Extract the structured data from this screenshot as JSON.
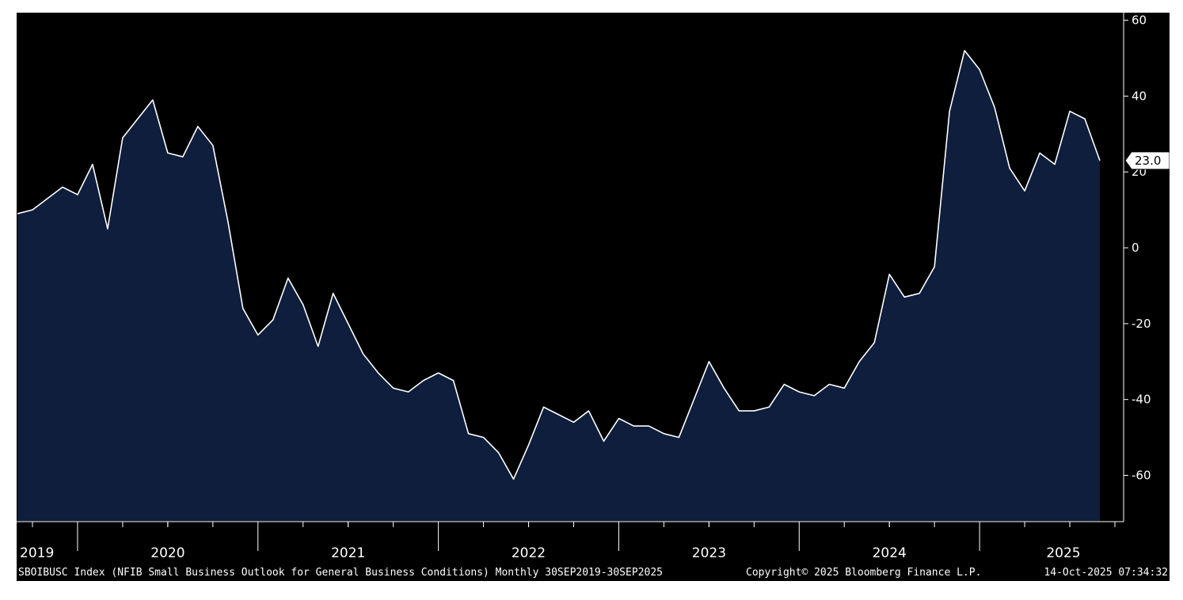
{
  "chart_data": {
    "type": "area",
    "title": "",
    "xlabel": "",
    "ylabel": "",
    "x_start": "2019-09",
    "x_end": "2025-09",
    "frequency": "monthly",
    "ylim": [
      -72,
      62
    ],
    "y_ticks": [
      60,
      40,
      20,
      0,
      -20,
      -40,
      -60
    ],
    "year_labels": [
      "2019",
      "2020",
      "2021",
      "2022",
      "2023",
      "2024",
      "2025"
    ],
    "last_value_label": "23.0",
    "grid": false,
    "colors": {
      "background": "#000000",
      "fill": "#0e1e3c",
      "line": "#ffffff"
    },
    "series": [
      {
        "values": [
          9,
          10,
          13,
          16,
          14,
          22,
          5,
          29,
          34,
          39,
          25,
          24,
          32,
          27,
          7,
          -16,
          -23,
          -19,
          -8,
          -15,
          -26,
          -12,
          -20,
          -28,
          -33,
          -37,
          -38,
          -35,
          -33,
          -35,
          -49,
          -50,
          -54,
          -61,
          -52,
          -42,
          -44,
          -46,
          -43,
          -51,
          -45,
          -47,
          -47,
          -49,
          -50,
          -40,
          -30,
          -37,
          -43,
          -43,
          -42,
          -36,
          -38,
          -39,
          -36,
          -37,
          -30,
          -25,
          -7,
          -13,
          -12,
          -5,
          36,
          52,
          47,
          37,
          21,
          15,
          25,
          22,
          36,
          34,
          23
        ]
      }
    ]
  },
  "footer": {
    "description": "SBOIBUSC Index (NFIB Small Business Outlook for General Business Conditions) Monthly 30SEP2019-30SEP2025",
    "copyright": "Copyright© 2025 Bloomberg Finance L.P.",
    "timestamp": "14-Oct-2025 07:34:32"
  }
}
